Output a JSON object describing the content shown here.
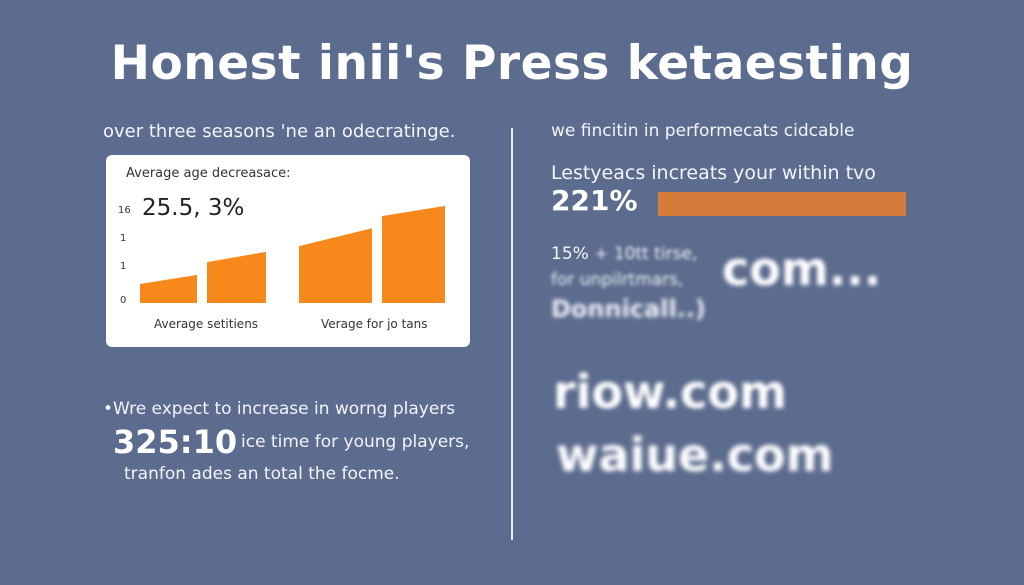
{
  "title": "Honest inii's Press ketaesting",
  "left": {
    "subtitle": "over three seasons 'ne an odecratinge.",
    "panel": {
      "label": "Average age decreasace:",
      "big_value": "25.5, 3%"
    },
    "expect_line": "•Wre expect to increase in worng players",
    "big_time": "325:10",
    "ice_line": "ice time for young players,",
    "tranfon_line": "tranfon ades an total the focme."
  },
  "right": {
    "subtitle": "we fincitin in performecats cidcable",
    "lest_line": "Lestyeacs increats your within tvo",
    "percent": "221%",
    "progress_fraction": 1.0,
    "progress_color": "#d67c3a",
    "fifteen_prefix": "15%",
    "fifteen_rest": "+ 10tt tirse,",
    "unpl_line": "for unpilrtmars,",
    "donn_line": "Donnicall..)",
    "com_text": "com...",
    "riow_text": "riow.com",
    "waiue_text": "waiue.com"
  },
  "chart_data": {
    "type": "bar",
    "ytick_labels": [
      "16",
      "1",
      "1",
      "0"
    ],
    "ylim": [
      0,
      17
    ],
    "bar_color": "#f7881c",
    "groups": [
      {
        "label": "Average setitiens",
        "bars": [
          {
            "start": 3.3,
            "end": 4.9
          },
          {
            "start": 7.1,
            "end": 8.9
          }
        ]
      },
      {
        "label": "Verage for jo tans",
        "bars": [
          {
            "start": 9.9,
            "end": 13.0
          },
          {
            "start": 15.1,
            "end": 16.9
          }
        ]
      }
    ],
    "grid": false
  }
}
